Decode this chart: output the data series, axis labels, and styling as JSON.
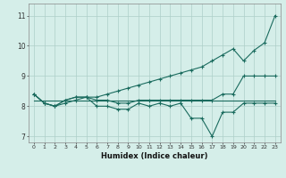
{
  "xlabel": "Humidex (Indice chaleur)",
  "x": [
    0,
    1,
    2,
    3,
    4,
    5,
    6,
    7,
    8,
    9,
    10,
    11,
    12,
    13,
    14,
    15,
    16,
    17,
    18,
    19,
    20,
    21,
    22,
    23
  ],
  "line_flat": [
    8.2,
    8.2,
    8.2,
    8.2,
    8.2,
    8.2,
    8.2,
    8.2,
    8.2,
    8.2,
    8.2,
    8.2,
    8.2,
    8.2,
    8.2,
    8.2,
    8.2,
    8.2,
    8.2,
    8.2,
    8.2,
    8.2,
    8.2,
    8.2
  ],
  "line_rise": [
    8.4,
    8.1,
    8.0,
    8.1,
    8.2,
    8.3,
    8.3,
    8.4,
    8.5,
    8.6,
    8.7,
    8.8,
    8.9,
    9.0,
    9.1,
    9.2,
    9.3,
    9.5,
    9.7,
    9.9,
    9.5,
    9.85,
    10.1,
    11.0
  ],
  "line_mid": [
    8.4,
    8.1,
    8.0,
    8.2,
    8.3,
    8.3,
    8.2,
    8.2,
    8.1,
    8.1,
    8.2,
    8.2,
    8.2,
    8.2,
    8.2,
    8.2,
    8.2,
    8.2,
    8.4,
    8.4,
    9.0,
    9.0,
    9.0,
    9.0
  ],
  "line_spiky": [
    8.4,
    8.1,
    8.0,
    8.2,
    8.3,
    8.3,
    8.0,
    8.0,
    7.9,
    7.9,
    8.1,
    8.0,
    8.1,
    8.0,
    8.1,
    7.6,
    7.6,
    7.0,
    7.8,
    7.8,
    8.1,
    8.1,
    8.1,
    8.1
  ],
  "line_color": "#1a6b5e",
  "bg_color": "#d5eee9",
  "grid_color": "#aecfc9",
  "ylim": [
    6.8,
    11.4
  ],
  "xlim": [
    -0.5,
    23.5
  ]
}
